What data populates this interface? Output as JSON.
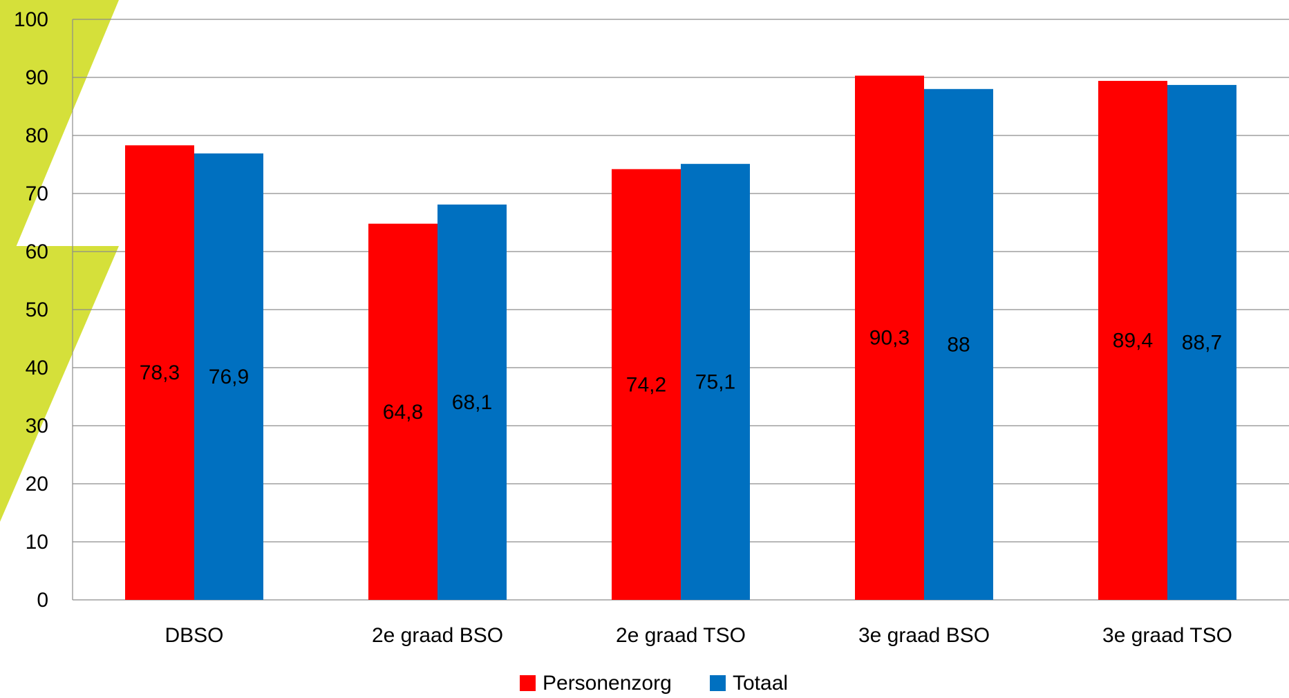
{
  "chart_data": {
    "type": "bar",
    "title": "",
    "xlabel": "",
    "ylabel": "",
    "ylim": [
      0,
      100
    ],
    "yticks": [
      0,
      10,
      20,
      30,
      40,
      50,
      60,
      70,
      80,
      90,
      100
    ],
    "grid": true,
    "legend_position": "bottom",
    "categories": [
      "DBSO",
      "2e graad BSO",
      "2e graad TSO",
      "3e graad BSO",
      "3e graad TSO"
    ],
    "series": [
      {
        "name": "Personenzorg",
        "color": "#ff0000",
        "values": [
          78.3,
          64.8,
          74.2,
          90.3,
          89.4
        ],
        "labels": [
          "78,3",
          "64,8",
          "74,2",
          "90,3",
          "89,4"
        ]
      },
      {
        "name": "Totaal",
        "color": "#0070c0",
        "values": [
          76.9,
          68.1,
          75.1,
          88,
          88.7
        ],
        "labels": [
          "76,9",
          "68,1",
          "75,1",
          "88",
          "88,7"
        ]
      }
    ]
  },
  "decor": {
    "accent_color": "#d5e03a"
  }
}
